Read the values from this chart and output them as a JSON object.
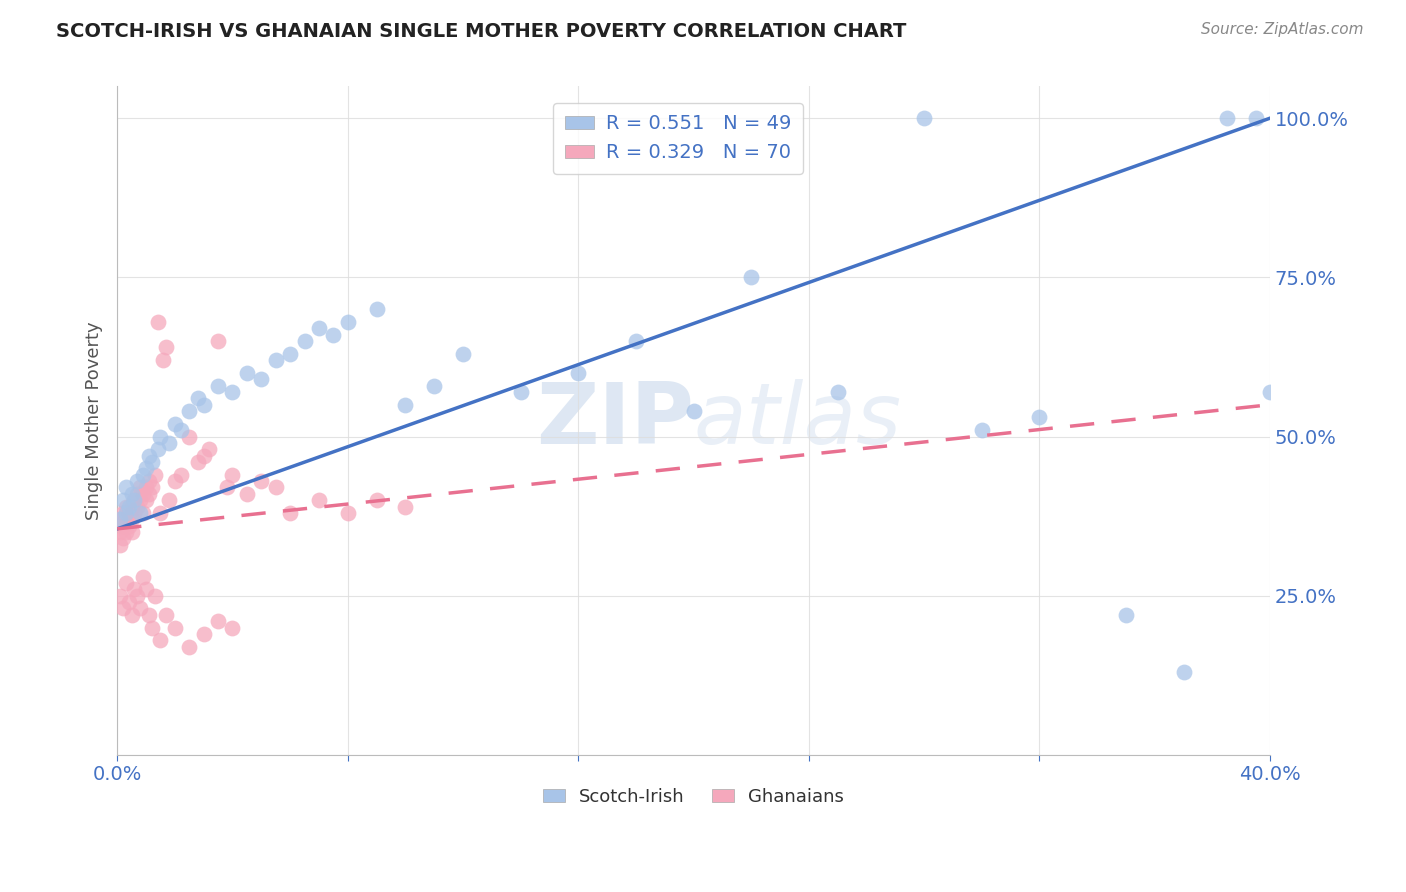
{
  "title": "SCOTCH-IRISH VS GHANAIAN SINGLE MOTHER POVERTY CORRELATION CHART",
  "source": "Source: ZipAtlas.com",
  "ylabel": "Single Mother Poverty",
  "legend_entry1": "R = 0.551   N = 49",
  "legend_entry2": "R = 0.329   N = 70",
  "legend_label1": "Scotch-Irish",
  "legend_label2": "Ghanaians",
  "blue_scatter_color": "#A8C4E8",
  "blue_line_color": "#4472C4",
  "pink_scatter_color": "#F5A8BC",
  "pink_line_color": "#E87090",
  "background_color": "#FFFFFF",
  "grid_color": "#DDDDDD",
  "title_color": "#222222",
  "axis_label_color": "#4472C4",
  "watermark_color": "#C8D8EC",
  "si_line_x0": 0.0,
  "si_line_y0": 0.355,
  "si_line_x1": 0.4,
  "si_line_y1": 1.0,
  "gh_line_x0": 0.0,
  "gh_line_y0": 0.355,
  "gh_line_x1": 0.4,
  "gh_line_y1": 0.55,
  "xmin": 0.0,
  "xmax": 0.4,
  "ymin": 0.0,
  "ymax": 1.05,
  "xticks": [
    0.0,
    0.08,
    0.16,
    0.24,
    0.32,
    0.4
  ],
  "xticklabels": [
    "0.0%",
    "",
    "",
    "",
    "",
    "40.0%"
  ],
  "yticks": [
    0.0,
    0.25,
    0.5,
    0.75,
    1.0
  ],
  "yticklabels_right": [
    "",
    "25.0%",
    "50.0%",
    "75.0%",
    "100.0%"
  ],
  "scotch_irish_x": [
    0.001,
    0.002,
    0.003,
    0.003,
    0.004,
    0.005,
    0.006,
    0.007,
    0.008,
    0.009,
    0.01,
    0.011,
    0.012,
    0.014,
    0.015,
    0.018,
    0.02,
    0.022,
    0.025,
    0.028,
    0.03,
    0.035,
    0.04,
    0.045,
    0.05,
    0.055,
    0.06,
    0.065,
    0.07,
    0.075,
    0.08,
    0.09,
    0.1,
    0.11,
    0.12,
    0.14,
    0.16,
    0.18,
    0.2,
    0.22,
    0.25,
    0.28,
    0.3,
    0.32,
    0.35,
    0.37,
    0.385,
    0.395,
    0.4
  ],
  "scotch_irish_y": [
    0.37,
    0.4,
    0.38,
    0.42,
    0.39,
    0.41,
    0.4,
    0.43,
    0.38,
    0.44,
    0.45,
    0.47,
    0.46,
    0.48,
    0.5,
    0.49,
    0.52,
    0.51,
    0.54,
    0.56,
    0.55,
    0.58,
    0.57,
    0.6,
    0.59,
    0.62,
    0.63,
    0.65,
    0.67,
    0.66,
    0.68,
    0.7,
    0.55,
    0.58,
    0.63,
    0.57,
    0.6,
    0.65,
    0.54,
    0.75,
    0.57,
    1.0,
    0.51,
    0.53,
    0.22,
    0.13,
    1.0,
    1.0,
    0.57
  ],
  "ghanaian_x": [
    0.001,
    0.001,
    0.001,
    0.002,
    0.002,
    0.002,
    0.003,
    0.003,
    0.003,
    0.004,
    0.004,
    0.005,
    0.005,
    0.005,
    0.006,
    0.006,
    0.007,
    0.007,
    0.008,
    0.008,
    0.009,
    0.009,
    0.01,
    0.01,
    0.011,
    0.011,
    0.012,
    0.013,
    0.014,
    0.015,
    0.016,
    0.017,
    0.018,
    0.02,
    0.022,
    0.025,
    0.028,
    0.03,
    0.032,
    0.035,
    0.038,
    0.04,
    0.045,
    0.05,
    0.055,
    0.06,
    0.07,
    0.08,
    0.09,
    0.1,
    0.001,
    0.002,
    0.003,
    0.004,
    0.005,
    0.006,
    0.007,
    0.008,
    0.009,
    0.01,
    0.011,
    0.012,
    0.013,
    0.015,
    0.017,
    0.02,
    0.025,
    0.03,
    0.035,
    0.04
  ],
  "ghanaian_y": [
    0.35,
    0.33,
    0.37,
    0.34,
    0.36,
    0.38,
    0.35,
    0.37,
    0.39,
    0.36,
    0.38,
    0.37,
    0.39,
    0.35,
    0.4,
    0.38,
    0.39,
    0.41,
    0.4,
    0.42,
    0.38,
    0.41,
    0.4,
    0.42,
    0.41,
    0.43,
    0.42,
    0.44,
    0.68,
    0.38,
    0.62,
    0.64,
    0.4,
    0.43,
    0.44,
    0.5,
    0.46,
    0.47,
    0.48,
    0.65,
    0.42,
    0.44,
    0.41,
    0.43,
    0.42,
    0.38,
    0.4,
    0.38,
    0.4,
    0.39,
    0.25,
    0.23,
    0.27,
    0.24,
    0.22,
    0.26,
    0.25,
    0.23,
    0.28,
    0.26,
    0.22,
    0.2,
    0.25,
    0.18,
    0.22,
    0.2,
    0.17,
    0.19,
    0.21,
    0.2
  ]
}
